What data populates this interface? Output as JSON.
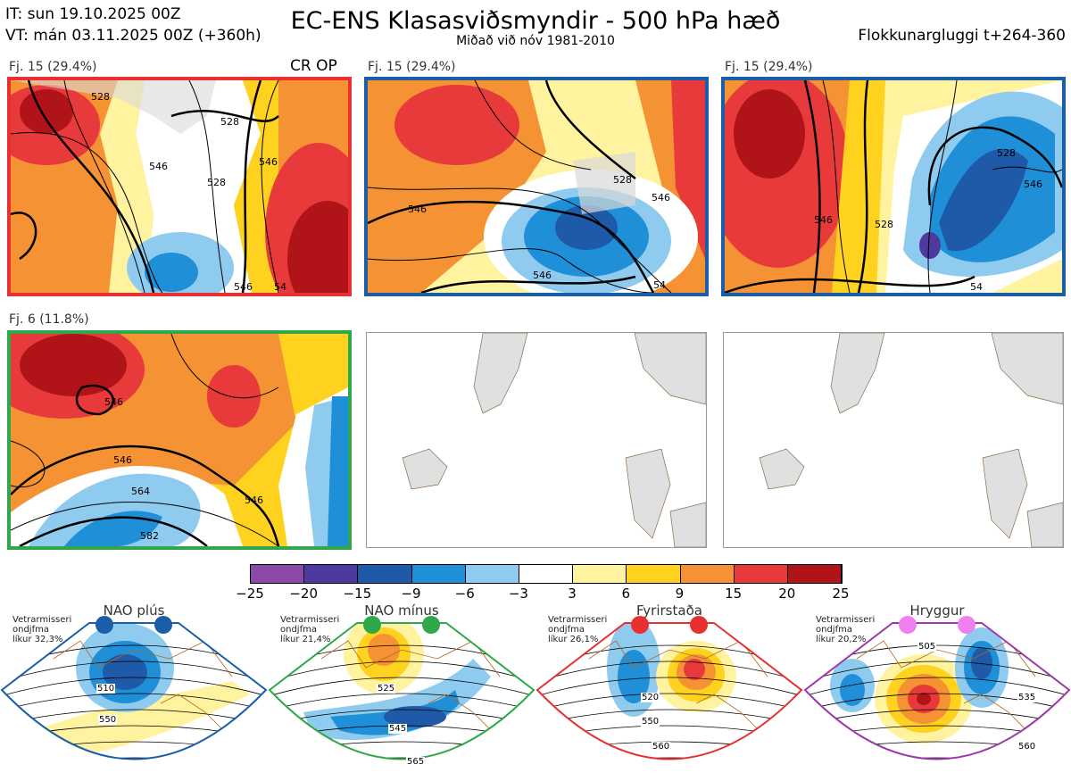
{
  "header": {
    "it_line": "IT: sun 19.10.2025 00Z",
    "vt_line": "VT: mán 03.11.2025 00Z  (+360h)",
    "title": "EC-ENS Klasasviðsmyndir - 500 hPa hæð",
    "subtitle": "Miðað við nóv 1981-2010",
    "window": "Flokkunargluggi t+264-360"
  },
  "panels": [
    {
      "label": "Fj. 15 (29.4%)",
      "tag": "CR OP",
      "border": "#e83030",
      "contours": [
        "528",
        "528",
        "546",
        "528",
        "546",
        "546",
        "54"
      ]
    },
    {
      "label": "Fj. 15 (29.4%)",
      "tag": "",
      "border": "#1b5ea8",
      "contours": [
        "546",
        "528",
        "546",
        "546",
        "54"
      ]
    },
    {
      "label": "Fj. 15 (29.4%)",
      "tag": "",
      "border": "#1b5ea8",
      "contours": [
        "546",
        "528",
        "528",
        "546",
        "54"
      ]
    },
    {
      "label": "Fj. 6 (11.8%)",
      "tag": "",
      "border": "#2ea84a",
      "contours": [
        "546",
        "546",
        "564",
        "582",
        "546"
      ]
    }
  ],
  "colorbar": {
    "colors": [
      "#8b4aa8",
      "#4e3a9e",
      "#1f5aa8",
      "#1f8fd8",
      "#8ecbef",
      "#ffffff",
      "#fff3a0",
      "#ffd21f",
      "#f59233",
      "#e83a3a",
      "#b01418"
    ],
    "labels": [
      "−25",
      "−20",
      "−15",
      "−9",
      "−6",
      "−3",
      "3",
      "6",
      "9",
      "15",
      "20",
      "25"
    ]
  },
  "regimes": [
    {
      "name": "NAO plús",
      "note1": "Vetrarmisseri",
      "note2": "ondjfma",
      "note3": "líkur 32,3%",
      "border": "#1b5ea8",
      "dot": "#1b5ea8",
      "contours": [
        "510",
        "550"
      ]
    },
    {
      "name": "NAO mínus",
      "note1": "Vetrarmisseri",
      "note2": "ondjfma",
      "note3": "líkur 21,4%",
      "border": "#2ea84a",
      "dot": "#2ea84a",
      "contours": [
        "525",
        "545",
        "565"
      ]
    },
    {
      "name": "Fyrirstaða",
      "note1": "Vetrarmisseri",
      "note2": "ondjfma",
      "note3": "líkur 26,1%",
      "border": "#e83030",
      "dot": "#e83030",
      "contours": [
        "520",
        "550",
        "560"
      ]
    },
    {
      "name": "Hryggur",
      "note1": "Vetrarmisseri",
      "note2": "ondjfma",
      "note3": "líkur 20,2%",
      "border": "#9b3aa8",
      "dot": "#f07ff0",
      "contours": [
        "505",
        "535",
        "560"
      ]
    }
  ]
}
